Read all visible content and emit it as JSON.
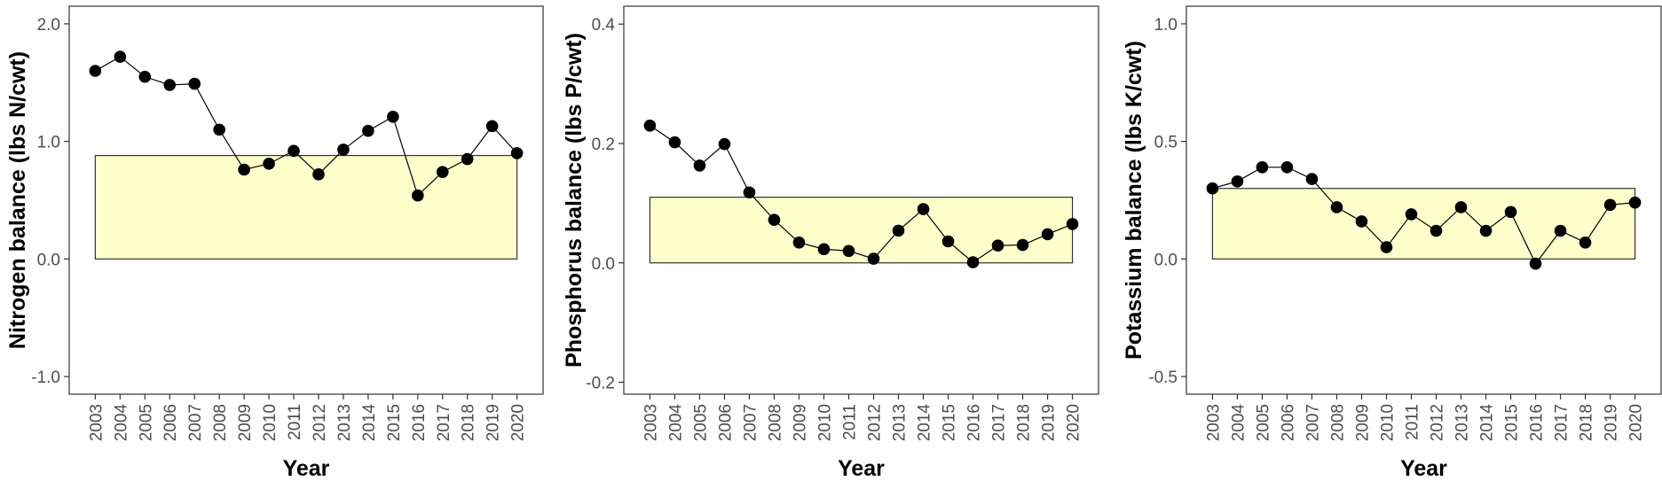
{
  "chart_data": [
    {
      "type": "scatter",
      "ylabel": "Nitrogen balance (lbs N/cwt)",
      "xlabel": "Year",
      "categories": [
        "2003",
        "2004",
        "2005",
        "2006",
        "2007",
        "2008",
        "2009",
        "2010",
        "2011",
        "2012",
        "2013",
        "2014",
        "2015",
        "2016",
        "2017",
        "2018",
        "2019",
        "2020"
      ],
      "values": [
        1.6,
        1.72,
        1.55,
        1.48,
        1.49,
        1.1,
        0.76,
        0.81,
        0.92,
        0.72,
        0.93,
        1.09,
        1.21,
        0.54,
        0.74,
        0.85,
        1.13,
        0.9
      ],
      "ylim": [
        -1.15,
        2.15
      ],
      "yticks": [
        -1.0,
        0.0,
        1.0,
        2.0
      ],
      "ytick_labels": [
        "-1.0",
        "0.0",
        "1.0",
        "2.0"
      ],
      "reference_band": {
        "ymin": 0.0,
        "ymax": 0.88,
        "x_from": "2003",
        "x_to": "2020"
      },
      "band_color": "#ffffcc",
      "point_color": "#000000",
      "grid": false
    },
    {
      "type": "scatter",
      "ylabel": "Phosphorus balance (lbs P/cwt)",
      "xlabel": "Year",
      "categories": [
        "2003",
        "2004",
        "2005",
        "2006",
        "2007",
        "2008",
        "2009",
        "2010",
        "2011",
        "2012",
        "2013",
        "2014",
        "2015",
        "2016",
        "2017",
        "2018",
        "2019",
        "2020"
      ],
      "values": [
        0.23,
        0.202,
        0.163,
        0.199,
        0.118,
        0.072,
        0.034,
        0.023,
        0.02,
        0.007,
        0.054,
        0.09,
        0.036,
        0.001,
        0.029,
        0.03,
        0.048,
        0.065
      ],
      "ylim": [
        -0.22,
        0.43
      ],
      "yticks": [
        -0.2,
        0.0,
        0.2,
        0.4
      ],
      "ytick_labels": [
        "-0.2",
        "0.0",
        "0.2",
        "0.4"
      ],
      "reference_band": {
        "ymin": 0.0,
        "ymax": 0.11,
        "x_from": "2003",
        "x_to": "2020"
      },
      "band_color": "#ffffcc",
      "point_color": "#000000",
      "grid": false
    },
    {
      "type": "scatter",
      "ylabel": "Potassium balance (lbs K/cwt)",
      "xlabel": "Year",
      "categories": [
        "2003",
        "2004",
        "2005",
        "2006",
        "2007",
        "2008",
        "2009",
        "2010",
        "2011",
        "2012",
        "2013",
        "2014",
        "2015",
        "2016",
        "2017",
        "2018",
        "2019",
        "2020"
      ],
      "values": [
        0.3,
        0.33,
        0.39,
        0.39,
        0.34,
        0.22,
        0.16,
        0.05,
        0.19,
        0.12,
        0.22,
        0.12,
        0.2,
        -0.02,
        0.12,
        0.07,
        0.23,
        0.24
      ],
      "ylim": [
        -0.575,
        1.075
      ],
      "yticks": [
        -0.5,
        0.0,
        0.5,
        1.0
      ],
      "ytick_labels": [
        "-0.5",
        "0.0",
        "0.5",
        "1.0"
      ],
      "reference_band": {
        "ymin": 0.0,
        "ymax": 0.3,
        "x_from": "2003",
        "x_to": "2020"
      },
      "band_color": "#ffffcc",
      "point_color": "#000000",
      "grid": false
    }
  ]
}
